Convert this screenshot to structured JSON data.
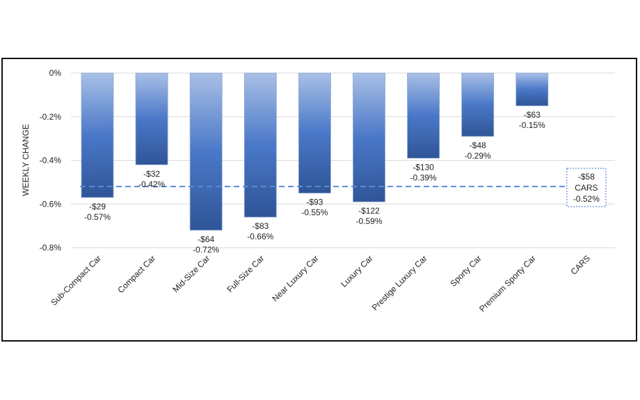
{
  "chart_data": {
    "type": "bar",
    "title": "",
    "xlabel": "",
    "ylabel": "WEEKLY CHANGE",
    "ylim": [
      -0.8,
      0
    ],
    "yticks": [
      0,
      -0.2,
      -0.4,
      -0.6,
      -0.8
    ],
    "ytick_labels": [
      "0%",
      "-0.2%",
      "-0.4%",
      "-0.6%",
      "-0.8%"
    ],
    "grid": true,
    "categories": [
      "Sub-Compact Car",
      "Compact Car",
      "Mid-Size Car",
      "Full-Size Car",
      "Near Luxury Car",
      "Luxury Car",
      "Prestige Luxury Car",
      "Sporty Car",
      "Premium Sporty Car",
      "CARS"
    ],
    "values": [
      -0.57,
      -0.42,
      -0.72,
      -0.66,
      -0.55,
      -0.59,
      -0.39,
      -0.29,
      -0.15,
      null
    ],
    "dollar_labels": [
      "-$29",
      "-$32",
      "-$64",
      "-$83",
      "-$93",
      "-$122",
      "-$130",
      "-$48",
      "-$63"
    ],
    "percent_labels": [
      "-0.57%",
      "-0.42%",
      "-0.72%",
      "-0.66%",
      "-0.55%",
      "-0.59%",
      "-0.39%",
      "-0.29%",
      "-0.15%"
    ],
    "reference_line": {
      "name": "CARS",
      "value": -0.52,
      "dollar_label": "-$58",
      "percent_label": "-0.52%",
      "style": "dashed"
    },
    "colors": {
      "bar_top": "#a9c0e6",
      "bar_mid": "#4a78c8",
      "bar_bottom": "#2f5597",
      "reference": "#5b8ad6",
      "grid": "#d9d9d9"
    }
  }
}
